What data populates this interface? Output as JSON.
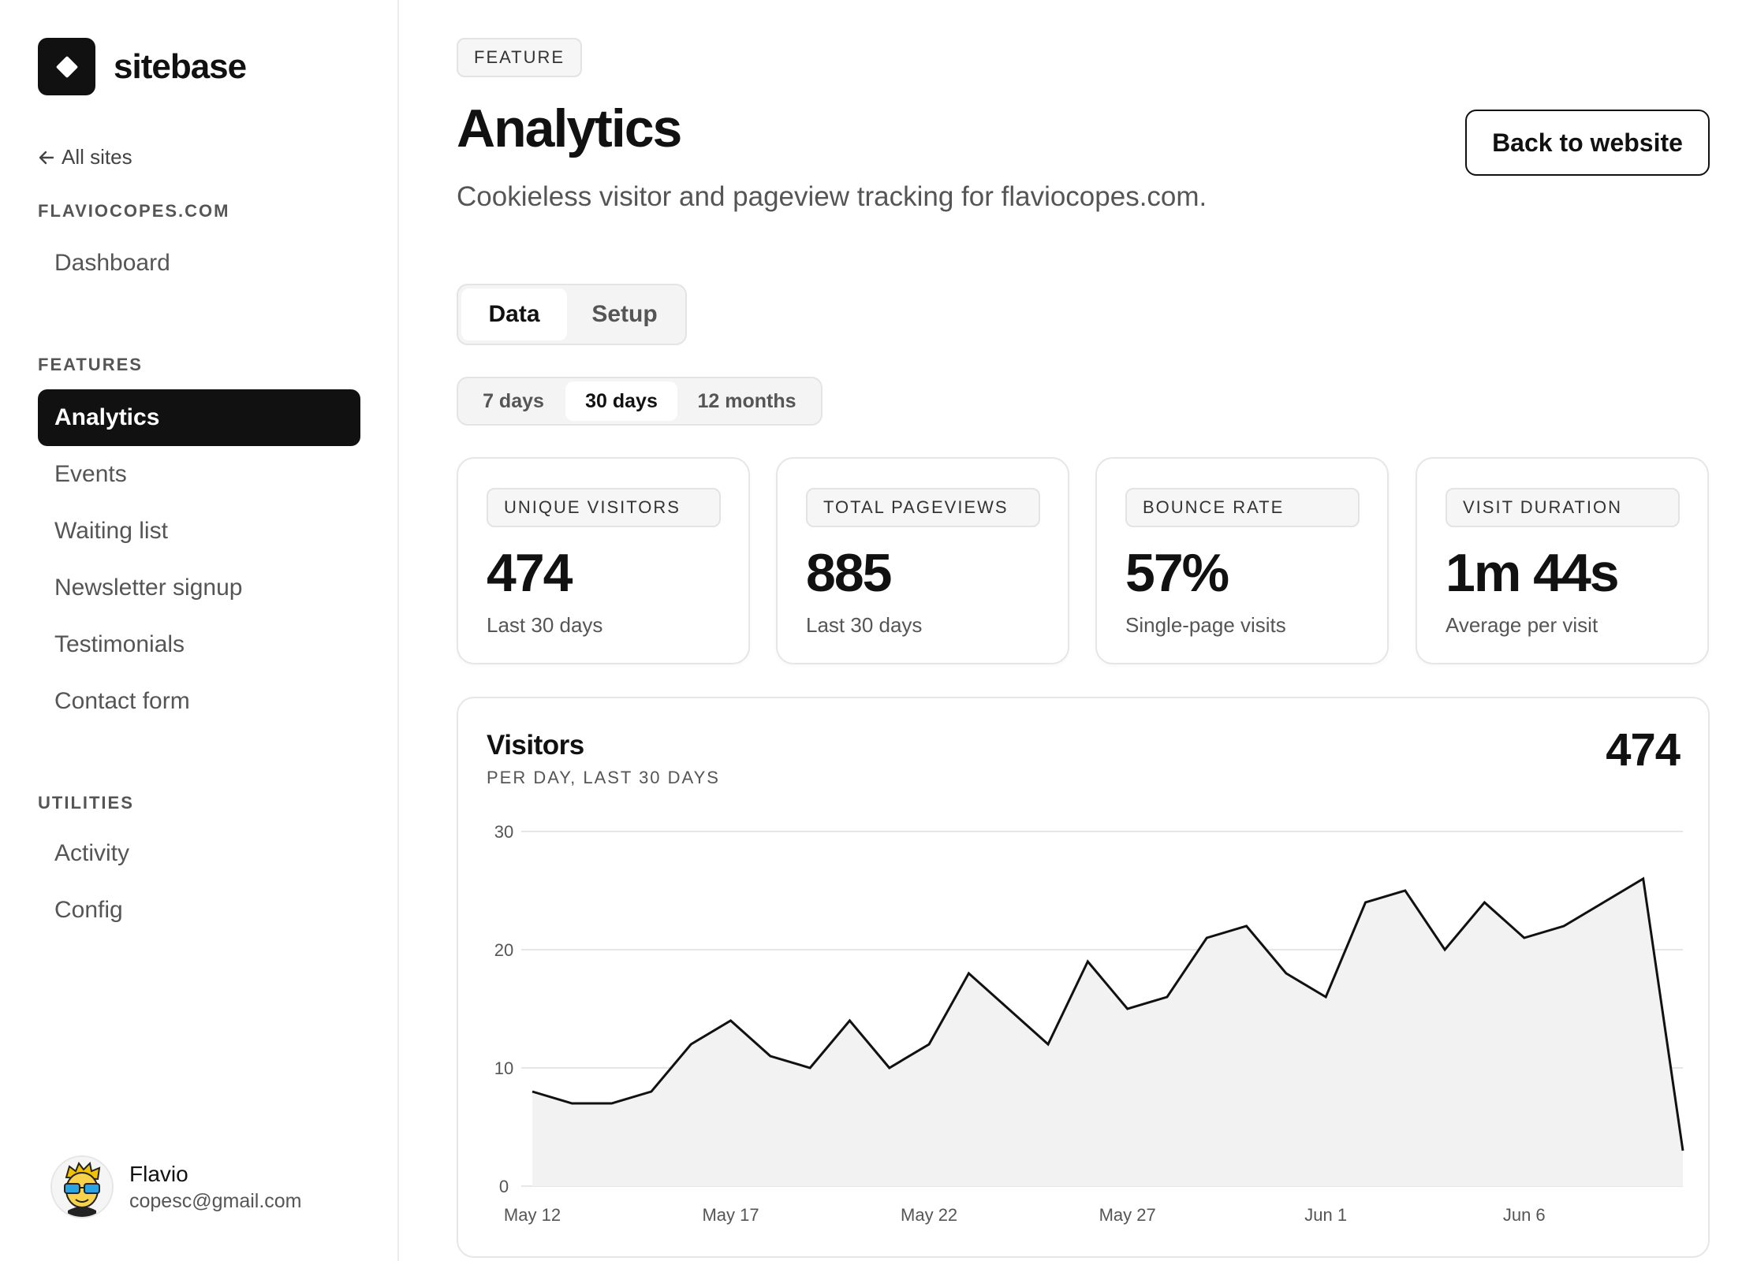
{
  "brand": {
    "name": "sitebase",
    "logo_icon": "diamond-icon"
  },
  "sidebar": {
    "back_label": "All sites",
    "site_label": "FLAVIOCOPES.COM",
    "site_items": [
      {
        "label": "Dashboard"
      }
    ],
    "features_label": "FEATURES",
    "feature_items": [
      {
        "label": "Analytics",
        "active": true
      },
      {
        "label": "Events"
      },
      {
        "label": "Waiting list"
      },
      {
        "label": "Newsletter signup"
      },
      {
        "label": "Testimonials"
      },
      {
        "label": "Contact form"
      }
    ],
    "utilities_label": "UTILITIES",
    "utility_items": [
      {
        "label": "Activity"
      },
      {
        "label": "Config"
      }
    ],
    "user": {
      "name": "Flavio",
      "email": "copesc@gmail.com"
    }
  },
  "header": {
    "badge": "FEATURE",
    "title": "Analytics",
    "subtitle": "Cookieless visitor and pageview tracking for flaviocopes.com.",
    "back_button": "Back to website"
  },
  "tabs": [
    {
      "label": "Data",
      "active": true
    },
    {
      "label": "Setup"
    }
  ],
  "ranges": [
    {
      "label": "7 days"
    },
    {
      "label": "30 days",
      "active": true
    },
    {
      "label": "12 months"
    }
  ],
  "stats": [
    {
      "label": "UNIQUE VISITORS",
      "value": "474",
      "caption": "Last 30 days"
    },
    {
      "label": "TOTAL PAGEVIEWS",
      "value": "885",
      "caption": "Last 30 days"
    },
    {
      "label": "BOUNCE RATE",
      "value": "57%",
      "caption": "Single-page visits"
    },
    {
      "label": "VISIT DURATION",
      "value": "1m 44s",
      "caption": "Average per visit"
    }
  ],
  "chart": {
    "title": "Visitors",
    "subtitle": "PER DAY, LAST 30 DAYS",
    "total": "474"
  },
  "colors": {
    "accent": "#111111",
    "area_fill": "#f2f2f2",
    "grid": "#e6e6e6"
  },
  "chart_data": {
    "type": "area",
    "title": "Visitors",
    "subtitle": "PER DAY, LAST 30 DAYS",
    "xlabel": "",
    "ylabel": "",
    "ylim": [
      0,
      30
    ],
    "yticks": [
      0,
      10,
      20,
      30
    ],
    "x": [
      "May 12",
      "May 13",
      "May 14",
      "May 15",
      "May 16",
      "May 17",
      "May 18",
      "May 19",
      "May 20",
      "May 21",
      "May 22",
      "May 23",
      "May 24",
      "May 25",
      "May 26",
      "May 27",
      "May 28",
      "May 29",
      "May 30",
      "May 31",
      "Jun 1",
      "Jun 2",
      "Jun 3",
      "Jun 4",
      "Jun 5",
      "Jun 6",
      "Jun 7",
      "Jun 8",
      "Jun 9",
      "Jun 10"
    ],
    "xtick_labels": [
      "May 12",
      "May 17",
      "May 22",
      "May 27",
      "Jun 1",
      "Jun 6"
    ],
    "xtick_index": [
      0,
      5,
      10,
      15,
      20,
      25
    ],
    "series": [
      {
        "values": [
          8,
          7,
          7,
          8,
          12,
          14,
          11,
          10,
          14,
          10,
          12,
          18,
          15,
          12,
          19,
          15,
          16,
          21,
          22,
          18,
          16,
          24,
          25,
          20,
          24,
          21,
          22,
          24,
          26,
          3
        ]
      }
    ],
    "grid": true,
    "legend": "none"
  }
}
